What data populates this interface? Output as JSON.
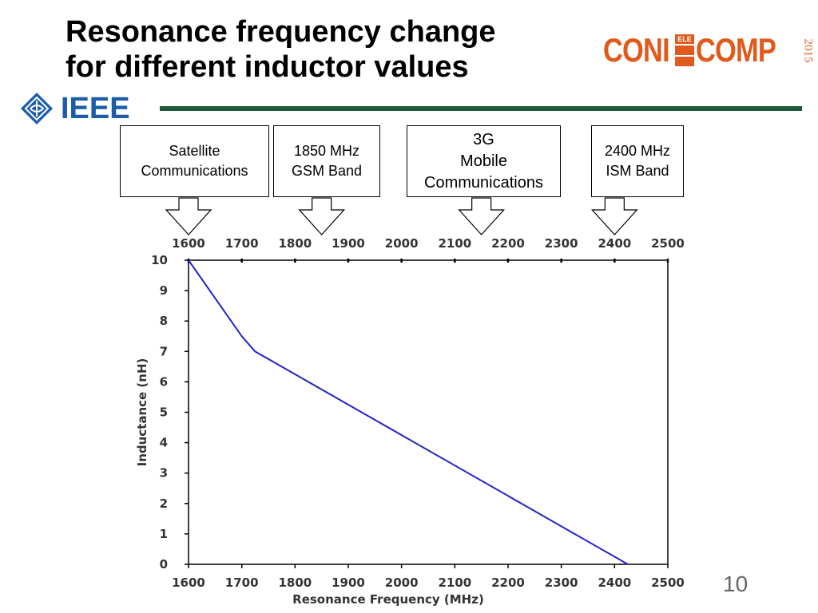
{
  "title": {
    "line1": "Resonance frequency change",
    "line2": "for different inductor values"
  },
  "conference_logo": {
    "left": "CONI",
    "middle_top": "ELE",
    "right": "COMP",
    "year": "2015"
  },
  "ieee_logo": {
    "text": "IEEE"
  },
  "callouts": [
    {
      "lines": [
        "Satellite",
        "Communications"
      ],
      "arrow_at": 1600
    },
    {
      "lines": [
        "1850 MHz",
        "GSM Band"
      ],
      "arrow_at": 1850
    },
    {
      "lines": [
        "3G",
        "Mobile",
        "Communications"
      ],
      "arrow_at": 2150
    },
    {
      "lines": [
        "2400 MHz",
        "ISM Band"
      ],
      "arrow_at": 2400
    }
  ],
  "slide_number": "10",
  "colors": {
    "line": "#2222cc",
    "rule": "#1e5a3a",
    "ieee_blue": "#1b5da8",
    "conf_orange": "#e05a1c"
  },
  "chart_data": {
    "type": "line",
    "xlabel": "Resonance Frequency (MHz)",
    "ylabel": "Inductance (nH)",
    "xlim": [
      1600,
      2500
    ],
    "ylim": [
      0,
      10
    ],
    "xticks": [
      1600,
      1700,
      1800,
      1900,
      2000,
      2100,
      2200,
      2300,
      2400,
      2500
    ],
    "yticks": [
      0,
      1,
      2,
      3,
      4,
      5,
      6,
      7,
      8,
      9,
      10
    ],
    "grid": false,
    "series": [
      {
        "x": [
          1600,
          1700,
          1725,
          2425
        ],
        "y": [
          10,
          7.5,
          7,
          0
        ]
      }
    ]
  }
}
